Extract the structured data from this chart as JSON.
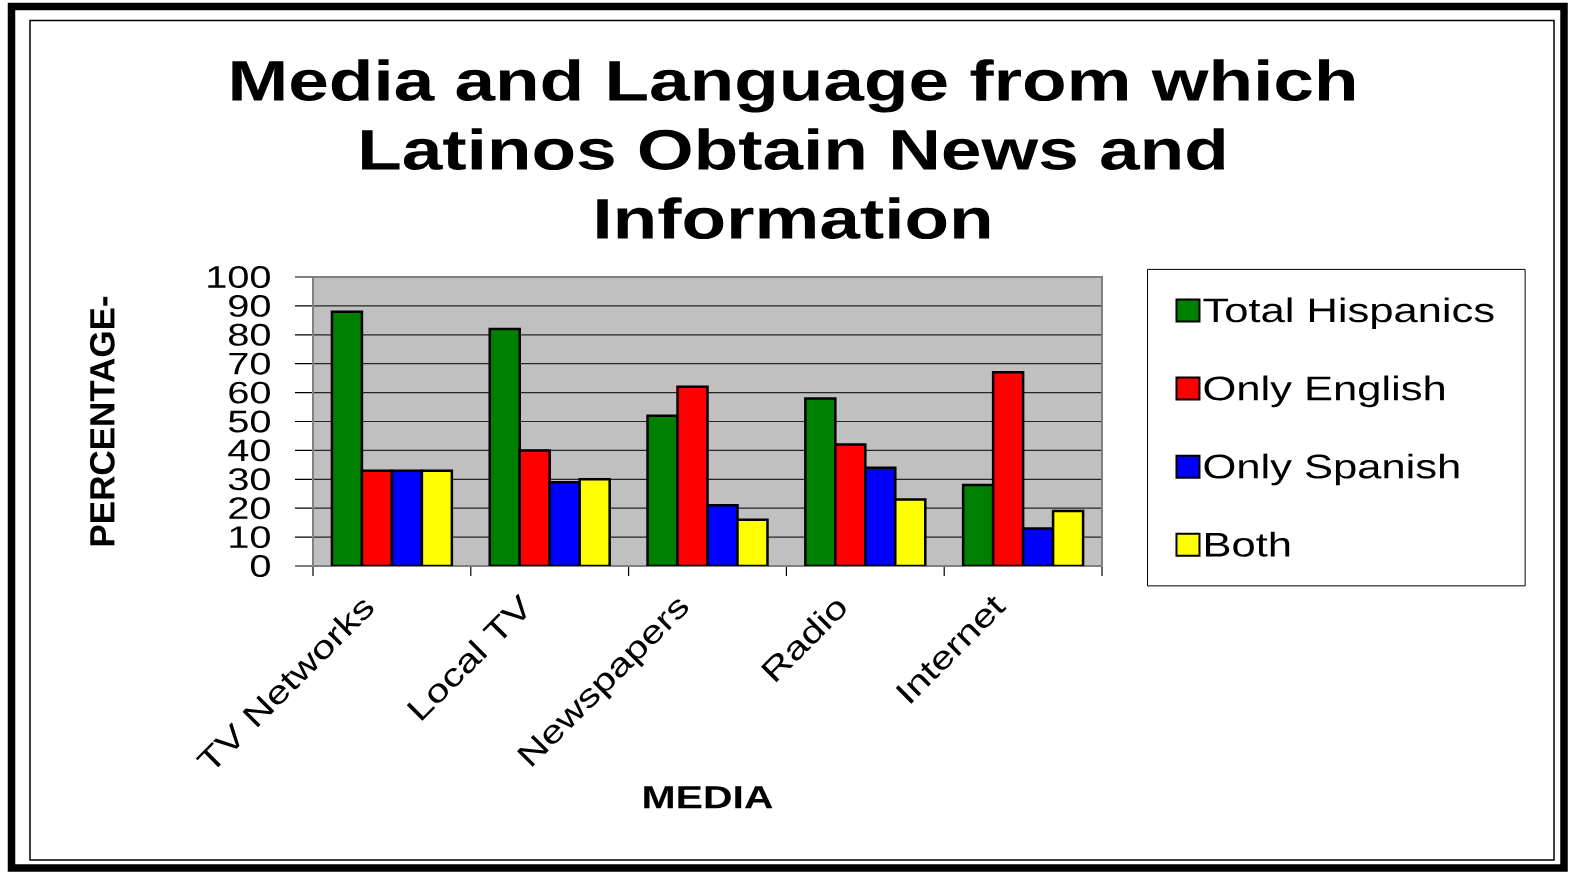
{
  "chart_data": {
    "type": "bar",
    "title": "Media and Language from which Latinos Obtain News and Information",
    "xlabel": "MEDIA",
    "ylabel": "PERCENTAGE-",
    "categories": [
      "TV Networks",
      "Local TV",
      "Newspapers",
      "Radio",
      "Internet"
    ],
    "series": [
      {
        "name": "Total Hispanics",
        "color": "#008000",
        "values": [
          88,
          82,
          52,
          58,
          28
        ]
      },
      {
        "name": "Only English",
        "color": "#ff0000",
        "values": [
          33,
          40,
          62,
          42,
          67
        ]
      },
      {
        "name": "Only Spanish",
        "color": "#0000ff",
        "values": [
          33,
          29,
          21,
          34,
          13
        ]
      },
      {
        "name": "Both",
        "color": "#ffff00",
        "values": [
          33,
          30,
          16,
          23,
          19
        ]
      }
    ],
    "ylim": [
      0,
      100
    ],
    "yticks": [
      0,
      10,
      20,
      30,
      40,
      50,
      60,
      70,
      80,
      90,
      100
    ],
    "grid": "y",
    "legend": "right"
  }
}
